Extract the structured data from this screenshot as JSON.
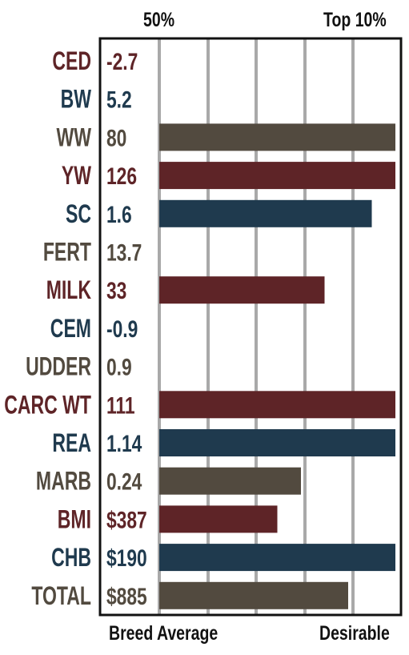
{
  "header": {
    "left_label": "50%",
    "right_label": "Top 10%"
  },
  "footer": {
    "left_label": "Breed Average",
    "right_label": "Desirable"
  },
  "colors": {
    "red": "#5e2427",
    "blue": "#1f3a4e",
    "gray": "#524a3f"
  },
  "chart_data": {
    "type": "bar",
    "orientation": "horizontal",
    "grid": true,
    "xlim_percent": [
      0,
      100
    ],
    "categories": [
      "CED",
      "BW",
      "WW",
      "YW",
      "SC",
      "FERT",
      "MILK",
      "CEM",
      "UDDER",
      "CARC WT",
      "REA",
      "MARB",
      "BMI",
      "CHB",
      "TOTAL"
    ],
    "values": [
      "-2.7",
      "5.2",
      "80",
      "126",
      "1.6",
      "13.7",
      "33",
      "-0.9",
      "0.9",
      "111",
      "1.14",
      "0.24",
      "$387",
      "$190",
      "$885"
    ],
    "label_colors": [
      "red",
      "blue",
      "gray",
      "red",
      "blue",
      "gray",
      "red",
      "blue",
      "gray",
      "red",
      "blue",
      "gray",
      "red",
      "blue",
      "gray"
    ],
    "bar_percent": [
      0,
      0,
      100,
      100,
      90,
      0,
      70,
      0,
      0,
      100,
      100,
      60,
      50,
      100,
      80
    ]
  }
}
